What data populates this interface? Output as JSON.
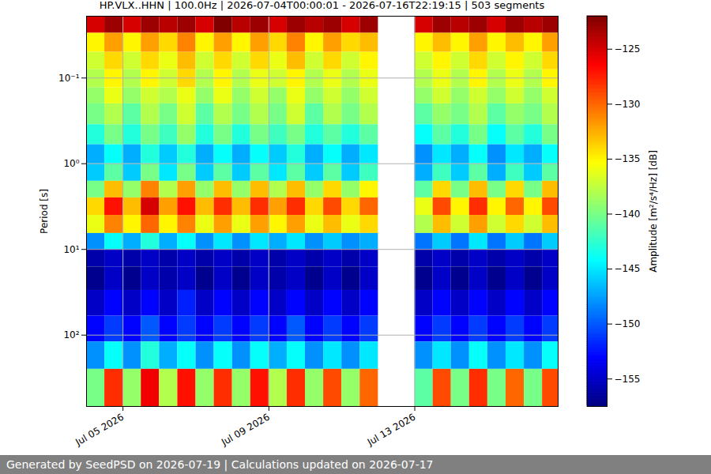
{
  "chart_data": {
    "type": "heatmap",
    "title": "HP.VLX..HHN | 100.0Hz | 2026-07-04T00:00:01 - 2026-07-16T22:19:15 | 503 segments",
    "y_label": "Period [s]",
    "caption": "Generated by SeedPSD on 2026-07-19 | Calculations updated on 2026-07-17",
    "x_edges": [
      "2026-07-04T00:00",
      "2026-07-04T12:00",
      "2026-07-05T00:00",
      "2026-07-05T12:00",
      "2026-07-06T00:00",
      "2026-07-06T12:00",
      "2026-07-07T00:00",
      "2026-07-07T12:00",
      "2026-07-08T00:00",
      "2026-07-08T12:00",
      "2026-07-09T00:00",
      "2026-07-09T12:00",
      "2026-07-10T00:00",
      "2026-07-10T12:00",
      "2026-07-11T00:00",
      "2026-07-11T12:00",
      "2026-07-12T00:00",
      "2026-07-12T12:00",
      "2026-07-13T00:00",
      "2026-07-13T12:00",
      "2026-07-14T00:00",
      "2026-07-14T12:00",
      "2026-07-15T00:00",
      "2026-07-15T12:00",
      "2026-07-16T00:00",
      "2026-07-16T12:00",
      "2026-07-17T00:00"
    ],
    "y_edges": [
      0.019,
      0.03,
      0.05,
      0.08,
      0.13,
      0.2,
      0.35,
      0.6,
      1,
      1.6,
      2.5,
      4,
      6.5,
      10,
      16,
      30,
      60,
      120,
      250,
      680
    ],
    "values": [
      [
        -125,
        -123,
        -125,
        -123,
        -124,
        -123,
        -125,
        -122,
        -124,
        -123,
        -125,
        -123,
        -124,
        -123,
        -125,
        -123,
        null,
        null,
        -125,
        -123,
        -124,
        -123,
        -125,
        -123,
        -124,
        -123
      ],
      [
        -135,
        -132,
        -135,
        -132,
        -134,
        -131,
        -135,
        -132,
        -135,
        -132,
        -134,
        -131,
        -135,
        -132,
        -134,
        -133,
        null,
        null,
        -135,
        -133,
        -135,
        -132,
        -135,
        -133,
        -135,
        -132
      ],
      [
        -137,
        -134,
        -137,
        -134,
        -136,
        -133,
        -137,
        -134,
        -137,
        -134,
        -136,
        -133,
        -137,
        -134,
        -137,
        -135,
        null,
        null,
        -137,
        -135,
        -137,
        -134,
        -137,
        -135,
        -137,
        -134
      ],
      [
        -138,
        -135,
        -138,
        -135,
        -137,
        -134,
        -138,
        -135,
        -138,
        -136,
        -137,
        -135,
        -138,
        -136,
        -138,
        -136,
        null,
        null,
        -138,
        -136,
        -138,
        -135,
        -138,
        -136,
        -138,
        -135
      ],
      [
        -139,
        -136,
        -139,
        -137,
        -138,
        -136,
        -139,
        -136,
        -139,
        -137,
        -139,
        -136,
        -139,
        -137,
        -139,
        -137,
        null,
        null,
        -139,
        -137,
        -139,
        -137,
        -139,
        -137,
        -139,
        -137
      ],
      [
        -140,
        -138,
        -141,
        -138,
        -140,
        -137,
        -141,
        -138,
        -140,
        -138,
        -140,
        -137,
        -141,
        -138,
        -140,
        -138,
        null,
        null,
        -141,
        -139,
        -140,
        -138,
        -141,
        -139,
        -140,
        -138
      ],
      [
        -143,
        -140,
        -143,
        -140,
        -142,
        -139,
        -143,
        -140,
        -143,
        -140,
        -142,
        -140,
        -143,
        -141,
        -143,
        -141,
        null,
        null,
        -144,
        -141,
        -143,
        -140,
        -144,
        -141,
        -143,
        -140
      ],
      [
        -147,
        -144,
        -147,
        -143,
        -146,
        -143,
        -147,
        -144,
        -147,
        -144,
        -146,
        -143,
        -147,
        -144,
        -147,
        -145,
        null,
        null,
        -148,
        -145,
        -147,
        -144,
        -148,
        -145,
        -147,
        -144
      ],
      [
        -146,
        -141,
        -146,
        -140,
        -145,
        -140,
        -146,
        -141,
        -146,
        -141,
        -145,
        -141,
        -146,
        -141,
        -146,
        -142,
        null,
        null,
        -147,
        -142,
        -146,
        -141,
        -147,
        -142,
        -146,
        -141
      ],
      [
        -140,
        -133,
        -139,
        -131,
        -138,
        -132,
        -139,
        -133,
        -139,
        -133,
        -138,
        -133,
        -139,
        -134,
        -139,
        -135,
        null,
        null,
        -141,
        -134,
        -140,
        -133,
        -140,
        -134,
        -140,
        -133
      ],
      [
        -134,
        -127,
        -133,
        -125,
        -132,
        -127,
        -133,
        -128,
        -133,
        -128,
        -132,
        -128,
        -134,
        -129,
        -134,
        -130,
        null,
        null,
        -136,
        -129,
        -135,
        -128,
        -135,
        -130,
        -135,
        -129
      ],
      [
        -136,
        -131,
        -135,
        -130,
        -135,
        -131,
        -136,
        -132,
        -136,
        -132,
        -135,
        -132,
        -136,
        -133,
        -136,
        -134,
        null,
        null,
        -138,
        -133,
        -137,
        -132,
        -137,
        -134,
        -137,
        -133
      ],
      [
        -148,
        -144,
        -147,
        -143,
        -147,
        -144,
        -148,
        -145,
        -148,
        -145,
        -147,
        -145,
        -148,
        -146,
        -148,
        -147,
        null,
        null,
        -149,
        -146,
        -149,
        -145,
        -149,
        -146,
        -149,
        -146
      ],
      [
        -156,
        -155,
        -156,
        -155,
        -156,
        -155,
        -156,
        -155,
        -156,
        -155,
        -156,
        -155,
        -156,
        -155,
        -156,
        -155,
        null,
        null,
        -156,
        -155,
        -156,
        -155,
        -156,
        -155,
        -156,
        -155
      ],
      [
        -157,
        -155,
        -157,
        -155,
        -156,
        -155,
        -157,
        -155,
        -157,
        -155,
        -156,
        -155,
        -157,
        -155,
        -157,
        -155,
        null,
        null,
        -157,
        -155,
        -157,
        -155,
        -157,
        -155,
        -157,
        -155
      ],
      [
        -155,
        -153,
        -155,
        -153,
        -155,
        -152,
        -155,
        -153,
        -155,
        -153,
        -155,
        -153,
        -155,
        -153,
        -155,
        -153,
        null,
        null,
        -155,
        -153,
        -155,
        -153,
        -155,
        -153,
        -155,
        -153
      ],
      [
        -153,
        -151,
        -153,
        -150,
        -153,
        -151,
        -153,
        -151,
        -153,
        -151,
        -153,
        -150,
        -153,
        -151,
        -153,
        -151,
        null,
        null,
        -153,
        -151,
        -153,
        -151,
        -153,
        -151,
        -153,
        -151
      ],
      [
        -148,
        -144,
        -148,
        -143,
        -147,
        -144,
        -148,
        -144,
        -148,
        -144,
        -147,
        -144,
        -148,
        -145,
        -148,
        -145,
        null,
        null,
        -148,
        -145,
        -148,
        -144,
        -148,
        -145,
        -148,
        -144
      ],
      [
        -140,
        -128,
        -139,
        -126,
        -138,
        -127,
        -139,
        -128,
        -139,
        -127,
        -138,
        -128,
        -139,
        -129,
        -139,
        -130,
        null,
        null,
        -141,
        -129,
        -140,
        -128,
        -140,
        -130,
        -140,
        -129
      ]
    ],
    "xlim": [
      "2026-07-04T00:00:01",
      "2026-07-16T22:19:15"
    ],
    "xticks": [
      {
        "value": "2026-07-05T00:00",
        "label": "Jul 05 2026"
      },
      {
        "value": "2026-07-09T00:00",
        "label": "Jul 09 2026"
      },
      {
        "value": "2026-07-13T00:00",
        "label": "Jul 13 2026"
      }
    ],
    "ylim": [
      0.019,
      680
    ],
    "yticks": [
      {
        "value": 0.1,
        "label": "10⁻¹"
      },
      {
        "value": 1,
        "label": "10⁰"
      },
      {
        "value": 10,
        "label": "10¹"
      },
      {
        "value": 100,
        "label": "10²"
      }
    ],
    "log": "y",
    "grid": true,
    "color": "jet",
    "colorbar": {
      "label": "Amplitude [m²/s⁴/Hz] [dB]",
      "lim": [
        -157.5,
        -122
      ],
      "ticks": [
        -155,
        -150,
        -145,
        -140,
        -135,
        -130,
        -125
      ]
    }
  }
}
